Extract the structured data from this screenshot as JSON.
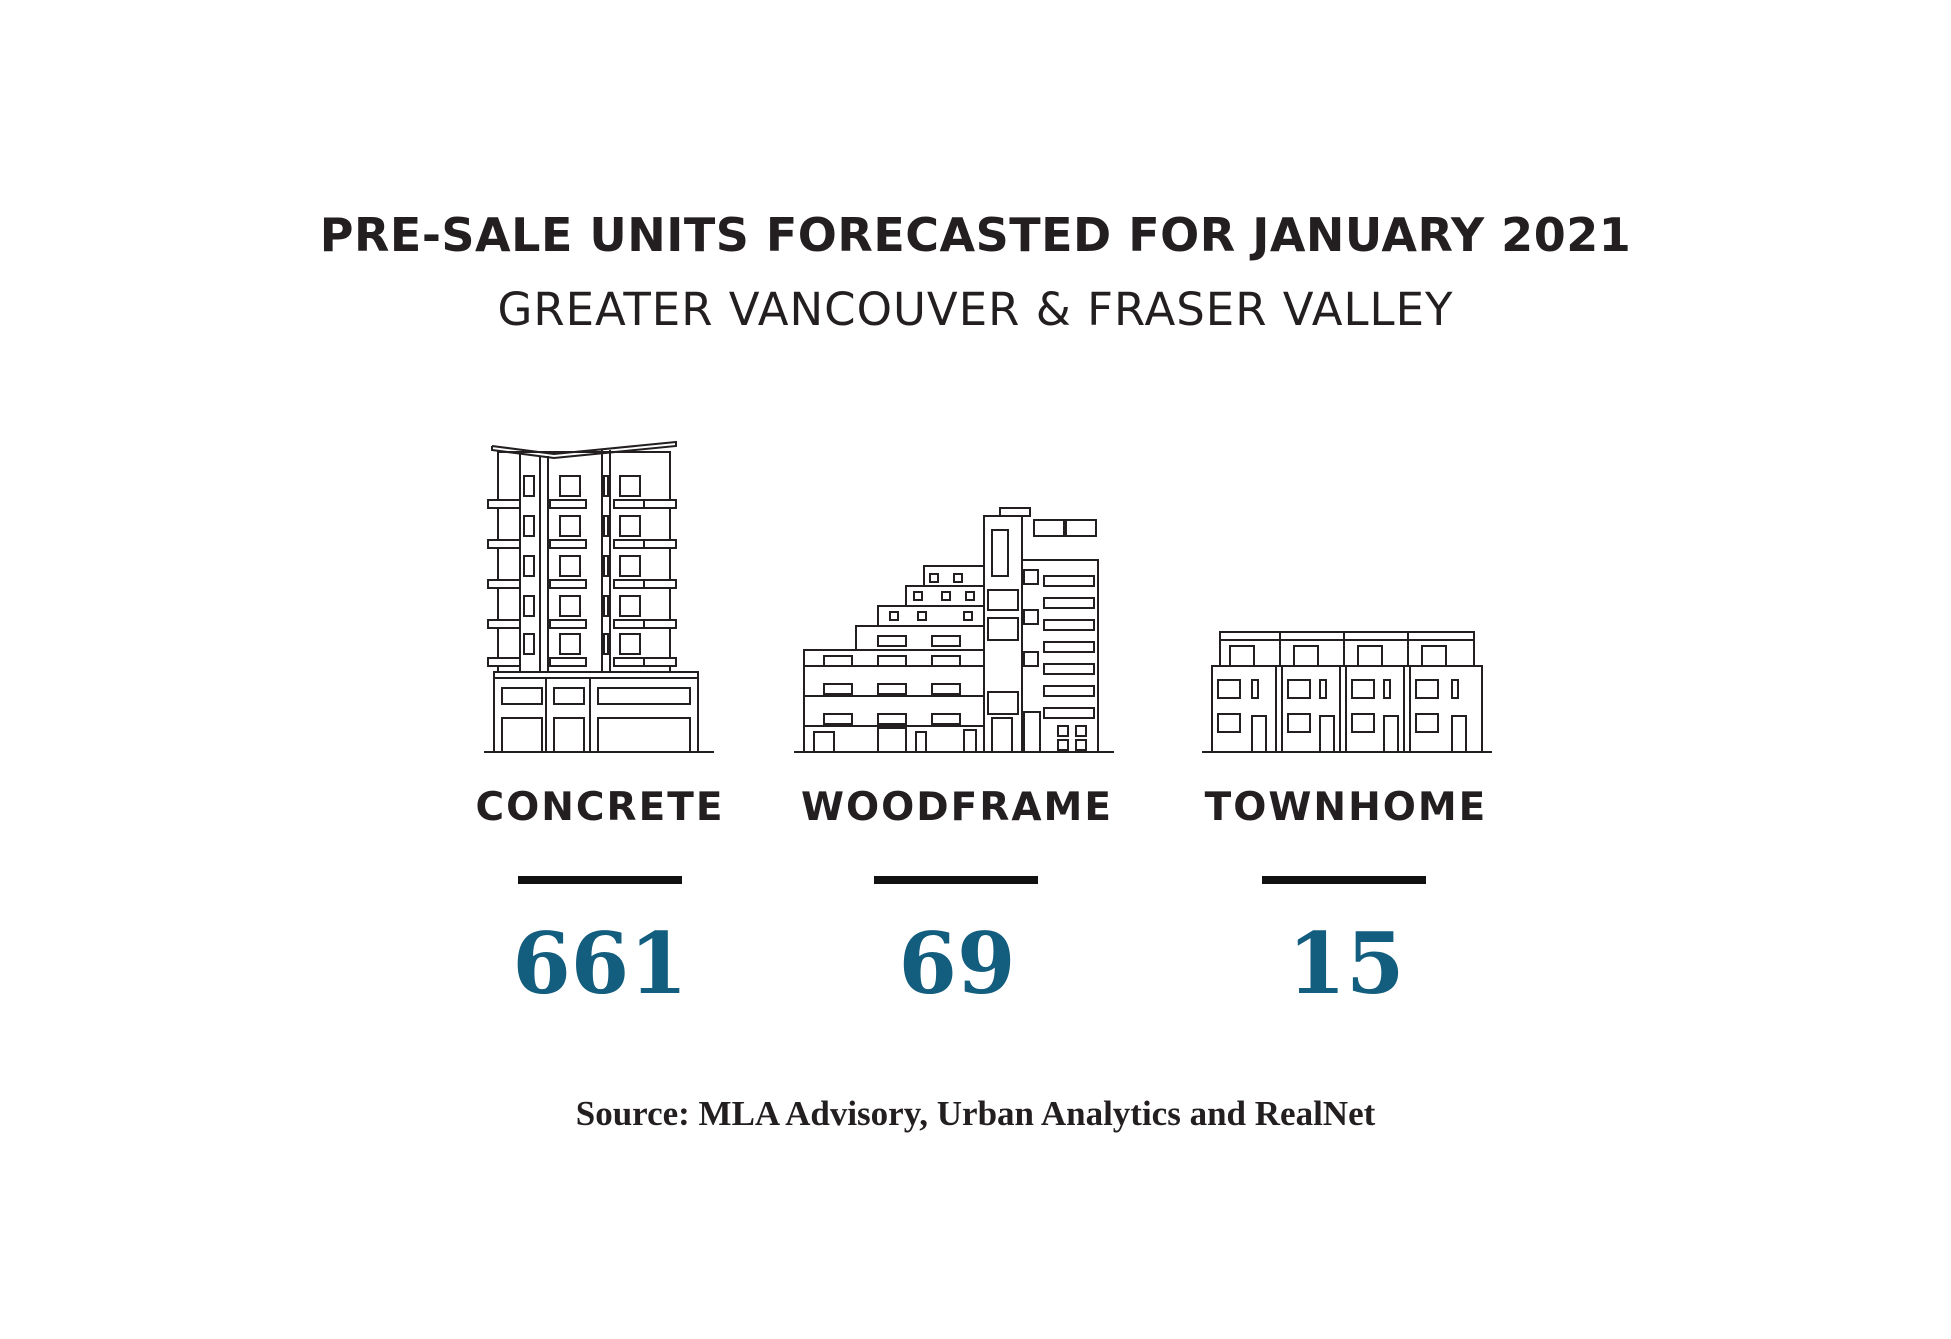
{
  "header": {
    "title": "PRE-SALE UNITS FORECASTED FOR JANUARY 2021",
    "subtitle": "GREATER VANCOUVER & FRASER VALLEY"
  },
  "categories": [
    {
      "label": "CONCRETE",
      "value": "661",
      "icon": "highrise-building-icon"
    },
    {
      "label": "WOODFRAME",
      "value": "69",
      "icon": "midrise-building-icon"
    },
    {
      "label": "TOWNHOME",
      "value": "15",
      "icon": "townhouse-row-icon"
    }
  ],
  "source": "Source: MLA Advisory, Urban Analytics and RealNet",
  "colors": {
    "text": "#231f20",
    "value": "#135d7e",
    "rule": "#111111"
  }
}
